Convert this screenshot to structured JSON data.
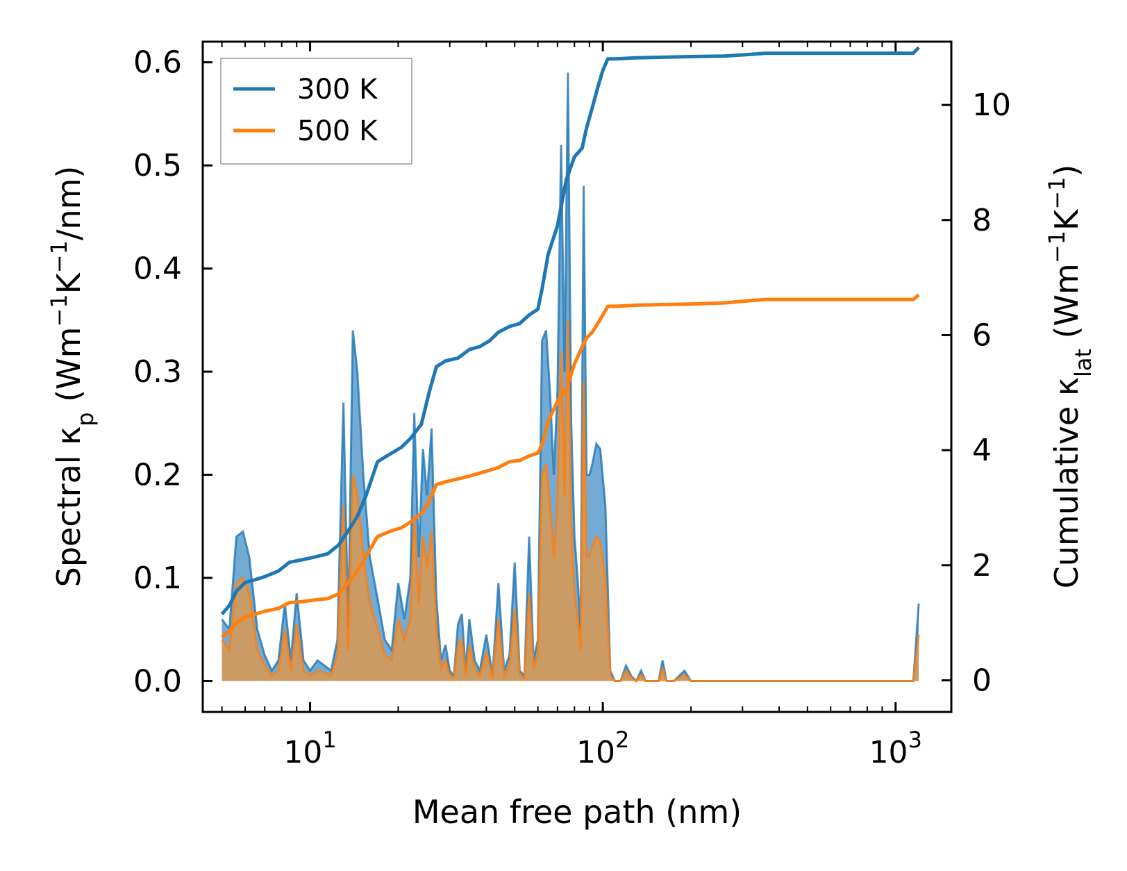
{
  "chart_data": {
    "type": "line",
    "xlabel": "Mean free path (nm)",
    "ylabel_left": {
      "text": "Spectral κ",
      "sub": "p",
      "unit": " (Wm",
      "unit_parts": [
        "−1",
        "K",
        "−1",
        "/nm)"
      ]
    },
    "ylabel_right": {
      "text": "Cumulative κ",
      "sub": "lat",
      "unit": " (Wm",
      "unit_parts": [
        "−1",
        "K",
        "−1",
        ")"
      ]
    },
    "xscale": "log",
    "xlim": [
      4.3,
      1550
    ],
    "ylim_left": [
      -0.03,
      0.62
    ],
    "ylim_right": [
      -0.55,
      11.1
    ],
    "x_tick_labels": [
      {
        "value": 10,
        "base": "10",
        "exp": "1"
      },
      {
        "value": 100,
        "base": "10",
        "exp": "2"
      },
      {
        "value": 1000,
        "base": "10",
        "exp": "3"
      }
    ],
    "y_left_ticks": [
      0.0,
      0.1,
      0.2,
      0.3,
      0.4,
      0.5,
      0.6
    ],
    "y_left_tick_labels": [
      "0.0",
      "0.1",
      "0.2",
      "0.3",
      "0.4",
      "0.5",
      "0.6"
    ],
    "y_right_ticks": [
      0,
      2,
      4,
      6,
      8,
      10
    ],
    "y_right_tick_labels": [
      "0",
      "2",
      "4",
      "6",
      "8",
      "10"
    ],
    "legend": {
      "position": "top-left",
      "entries": [
        "300 K",
        "500 K"
      ]
    },
    "colors": {
      "c300": "#1f77b4",
      "c500": "#ff7f0e",
      "fill300": "#5b9ccc",
      "fill500": "#d09a60"
    },
    "spectral_x": [
      5.0,
      5.3,
      5.6,
      5.9,
      6.2,
      6.6,
      7.0,
      7.4,
      7.8,
      8.2,
      8.6,
      9.0,
      9.5,
      10.0,
      10.6,
      11.2,
      11.8,
      12.4,
      13.0,
      13.5,
      14.0,
      14.5,
      15.2,
      16.0,
      17.0,
      18.0,
      19.0,
      20.0,
      21.0,
      22.0,
      22.7,
      23.5,
      24.3,
      25.1,
      26.0,
      27.0,
      28.0,
      29.0,
      30.0,
      31.0,
      32.0,
      33.0,
      34.0,
      35.0,
      36.5,
      38.0,
      40.0,
      42.0,
      44.0,
      46.0,
      48.0,
      50.0,
      52.0,
      54.0,
      56.0,
      58.0,
      60.0,
      62.0,
      64.0,
      66.0,
      68.0,
      70.0,
      72.0,
      74.0,
      76.0,
      78.0,
      80.0,
      82.0,
      84.0,
      86.0,
      88.0,
      90.0,
      92.0,
      95.0,
      98.0,
      102.0,
      106.0,
      110.0,
      115.0,
      120.0,
      125.0,
      130.0,
      135.0,
      140.0,
      145.0,
      150.0,
      155.0,
      160.0,
      165.0,
      170.0,
      175.0,
      190.0,
      200.0,
      210.0,
      220.0,
      240.0,
      255.0,
      265.0,
      280.0,
      295.0,
      310.0,
      330.0,
      350.0,
      400.0,
      600.0,
      800.0,
      1000.0,
      1150.0,
      1200.0
    ],
    "spectral_300": [
      0.06,
      0.05,
      0.14,
      0.145,
      0.12,
      0.05,
      0.025,
      0.01,
      0.02,
      0.075,
      0.02,
      0.085,
      0.02,
      0.01,
      0.02,
      0.015,
      0.01,
      0.04,
      0.27,
      0.05,
      0.34,
      0.3,
      0.2,
      0.12,
      0.08,
      0.04,
      0.03,
      0.095,
      0.06,
      0.1,
      0.26,
      0.12,
      0.225,
      0.18,
      0.245,
      0.08,
      0.02,
      0.035,
      0.01,
      0.005,
      0.055,
      0.065,
      0.01,
      0.06,
      0.02,
      0.01,
      0.045,
      0.005,
      0.095,
      0.01,
      0.025,
      0.115,
      0.01,
      0.005,
      0.14,
      0.02,
      0.04,
      0.33,
      0.34,
      0.28,
      0.2,
      0.28,
      0.52,
      0.3,
      0.59,
      0.25,
      0.14,
      0.1,
      0.05,
      0.48,
      0.2,
      0.2,
      0.21,
      0.23,
      0.225,
      0.17,
      0.01,
      0.0,
      0.0,
      0.015,
      0.005,
      0.0,
      0.01,
      0.0,
      0.0,
      0.0,
      0.0,
      0.02,
      0.0,
      0.0,
      0.0,
      0.01,
      0.0,
      0.0,
      0.0,
      0.0,
      0.0,
      0.0,
      0.0,
      0.0,
      0.0,
      0.0,
      0.0,
      0.0,
      0.0,
      0.0,
      0.0,
      0.0,
      0.075
    ],
    "spectral_500": [
      0.04,
      0.03,
      0.095,
      0.1,
      0.085,
      0.03,
      0.015,
      0.005,
      0.01,
      0.05,
      0.01,
      0.055,
      0.01,
      0.005,
      0.01,
      0.008,
      0.005,
      0.025,
      0.17,
      0.03,
      0.2,
      0.18,
      0.12,
      0.075,
      0.05,
      0.025,
      0.02,
      0.06,
      0.04,
      0.06,
      0.16,
      0.075,
      0.14,
      0.11,
      0.145,
      0.05,
      0.012,
      0.02,
      0.005,
      0.003,
      0.035,
      0.04,
      0.005,
      0.035,
      0.012,
      0.005,
      0.028,
      0.003,
      0.06,
      0.005,
      0.015,
      0.07,
      0.005,
      0.003,
      0.085,
      0.012,
      0.025,
      0.2,
      0.21,
      0.17,
      0.12,
      0.17,
      0.32,
      0.18,
      0.35,
      0.15,
      0.085,
      0.06,
      0.03,
      0.29,
      0.12,
      0.12,
      0.13,
      0.14,
      0.135,
      0.1,
      0.005,
      0.0,
      0.0,
      0.01,
      0.003,
      0.0,
      0.006,
      0.0,
      0.0,
      0.0,
      0.0,
      0.012,
      0.0,
      0.0,
      0.0,
      0.006,
      0.0,
      0.0,
      0.0,
      0.0,
      0.0,
      0.0,
      0.0,
      0.0,
      0.0,
      0.0,
      0.0,
      0.0,
      0.0,
      0.0,
      0.0,
      0.0,
      0.045
    ],
    "cumulative_300": {
      "x": [
        5.0,
        5.3,
        5.6,
        6.0,
        6.5,
        7.0,
        7.8,
        8.5,
        9.5,
        10.5,
        11.5,
        12.5,
        13.5,
        14.5,
        15.5,
        17.0,
        19.0,
        20.5,
        22.0,
        24.0,
        25.5,
        27.0,
        29.0,
        32.0,
        35.0,
        38.0,
        41.0,
        44.0,
        48.0,
        52.0,
        56.0,
        60.0,
        62.0,
        65.0,
        70.0,
        75.0,
        80.0,
        85.0,
        88.0,
        92.0,
        96.0,
        100.0,
        104.0,
        110.0,
        130.0,
        160.0,
        200.0,
        260.0,
        320.0,
        360.0,
        500.0,
        800.0,
        1150.0,
        1200.0
      ],
      "y": [
        1.15,
        1.3,
        1.55,
        1.7,
        1.75,
        1.8,
        1.9,
        2.05,
        2.1,
        2.15,
        2.2,
        2.35,
        2.6,
        2.85,
        3.2,
        3.8,
        3.95,
        4.05,
        4.2,
        4.45,
        5.0,
        5.45,
        5.55,
        5.6,
        5.75,
        5.8,
        5.9,
        6.05,
        6.15,
        6.2,
        6.35,
        6.45,
        6.8,
        7.4,
        7.9,
        8.7,
        9.1,
        9.25,
        9.6,
        9.95,
        10.3,
        10.6,
        10.8,
        10.8,
        10.82,
        10.83,
        10.84,
        10.85,
        10.88,
        10.9,
        10.9,
        10.9,
        10.9,
        11.0
      ]
    },
    "cumulative_500": {
      "x": [
        5.0,
        5.3,
        5.6,
        6.0,
        6.5,
        7.0,
        7.8,
        8.5,
        9.5,
        10.5,
        11.5,
        12.5,
        13.5,
        14.5,
        15.5,
        17.0,
        19.0,
        20.5,
        22.0,
        24.0,
        25.5,
        27.0,
        29.0,
        32.0,
        35.0,
        38.0,
        41.0,
        44.0,
        48.0,
        52.0,
        56.0,
        60.0,
        62.0,
        65.0,
        70.0,
        75.0,
        80.0,
        85.0,
        88.0,
        92.0,
        96.0,
        100.0,
        104.0,
        110.0,
        130.0,
        160.0,
        200.0,
        260.0,
        320.0,
        360.0,
        500.0,
        800.0,
        1150.0,
        1200.0
      ],
      "y": [
        0.75,
        0.85,
        1.0,
        1.1,
        1.15,
        1.2,
        1.25,
        1.35,
        1.37,
        1.4,
        1.42,
        1.5,
        1.7,
        1.9,
        2.15,
        2.5,
        2.6,
        2.65,
        2.75,
        2.9,
        3.1,
        3.4,
        3.45,
        3.5,
        3.55,
        3.6,
        3.65,
        3.7,
        3.8,
        3.82,
        3.9,
        3.95,
        4.1,
        4.5,
        4.85,
        5.05,
        5.5,
        5.8,
        5.95,
        6.05,
        6.2,
        6.35,
        6.5,
        6.5,
        6.52,
        6.53,
        6.54,
        6.56,
        6.6,
        6.62,
        6.62,
        6.62,
        6.62,
        6.7
      ]
    }
  }
}
